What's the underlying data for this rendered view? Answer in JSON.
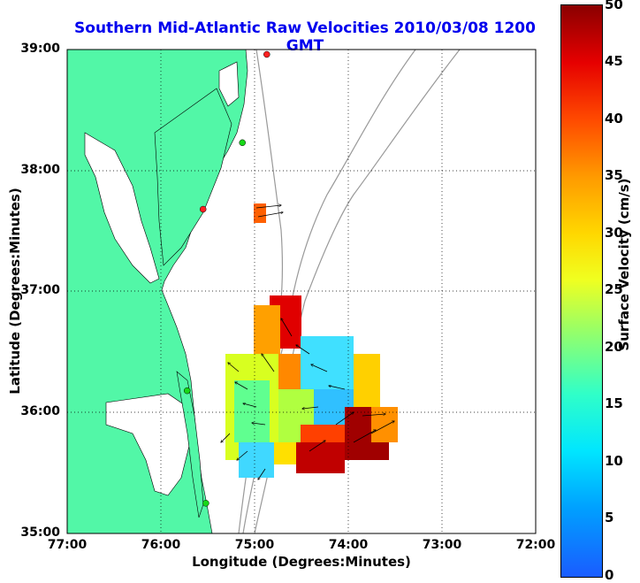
{
  "title": "Southern Mid-Atlantic Raw Velocities 2010/03/08 1200 GMT",
  "x_axis": {
    "label": "Longitude (Degrees:Minutes)",
    "ticks": [
      "77:00",
      "76:00",
      "75:00",
      "74:00",
      "73:00",
      "72:00"
    ]
  },
  "y_axis": {
    "label": "Latitude (Degrees:Minutes)",
    "ticks": [
      "39:00",
      "38:00",
      "37:00",
      "36:00",
      "35:00"
    ]
  },
  "colorbar": {
    "label": "Surface Velocity (cm/s)",
    "ticks": [
      "50",
      "45",
      "40",
      "35",
      "30",
      "25",
      "20",
      "15",
      "10",
      "5",
      "0"
    ],
    "min": 0,
    "max": 50
  },
  "colors": {
    "land": "#52f7a7",
    "title": "#0000ee",
    "station_green": "#18d818",
    "station_red": "#ff2020"
  },
  "stations": [
    {
      "lon": -74.87,
      "lat": 38.96,
      "color": "red"
    },
    {
      "lon": -75.13,
      "lat": 38.23,
      "color": "green"
    },
    {
      "lon": -75.55,
      "lat": 37.68,
      "color": "red"
    },
    {
      "lon": -75.72,
      "lat": 36.18,
      "color": "green"
    },
    {
      "lon": -75.52,
      "lat": 35.25,
      "color": "green"
    }
  ]
}
